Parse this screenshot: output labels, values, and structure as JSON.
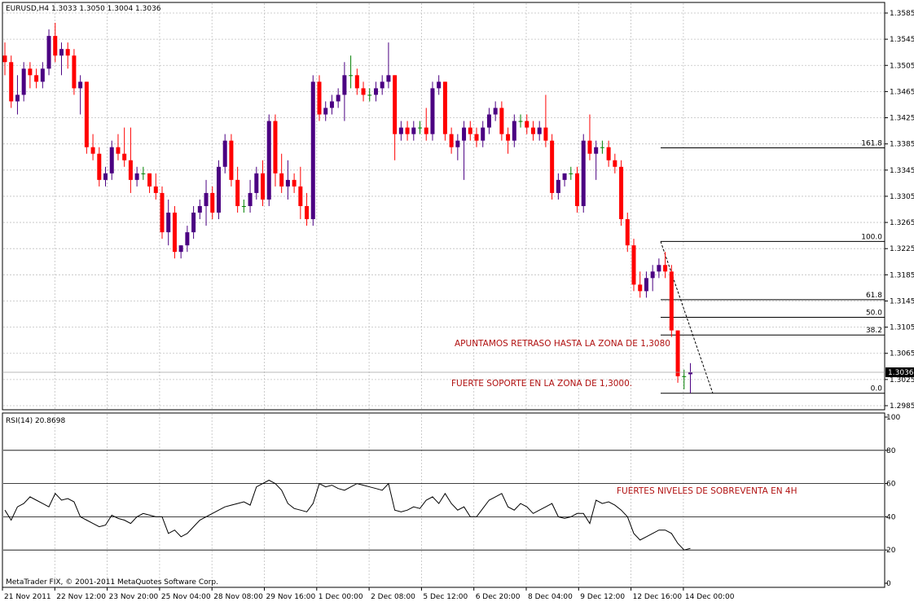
{
  "header": {
    "symbol_info": "EURUSD,H4  1.3033 1.3050 1.3004 1.3036",
    "indicator_info": "RSI(14) 20.8698",
    "footer": "MetaTrader FIX, © 2001-2011 MetaQuotes Software Corp."
  },
  "colors": {
    "bull": "#4b0082",
    "bear": "#ff0000",
    "doji": "#008000",
    "rsi_line": "#000000",
    "annotation": "#b01010",
    "grid": "#c0c0c0"
  },
  "chart_data": [
    {
      "type": "candlestick",
      "symbol": "EURUSD",
      "timeframe": "H4",
      "last_price": "1.3036",
      "ylim": [
        1.2985,
        1.3585
      ],
      "y_ticks": [
        "1.3585",
        "1.3545",
        "1.3505",
        "1.3465",
        "1.3425",
        "1.3385",
        "1.3345",
        "1.3305",
        "1.3265",
        "1.3225",
        "1.3185",
        "1.3145",
        "1.3105",
        "1.3065",
        "1.3025",
        "1.2985"
      ],
      "x_ticks": [
        "21 Nov 2011",
        "22 Nov 12:00",
        "23 Nov 20:00",
        "25 Nov 04:00",
        "28 Nov 08:00",
        "29 Nov 16:00",
        "1 Dec 00:00",
        "2 Dec 08:00",
        "5 Dec 12:00",
        "6 Dec 20:00",
        "8 Dec 04:00",
        "9 Dec 12:00",
        "12 Dec 16:00",
        "14 Dec 00:00"
      ],
      "candles": [
        [
          1.352,
          1.354,
          1.349,
          1.351
        ],
        [
          1.351,
          1.352,
          1.344,
          1.345
        ],
        [
          1.345,
          1.349,
          1.343,
          1.346
        ],
        [
          1.346,
          1.351,
          1.345,
          1.35
        ],
        [
          1.35,
          1.351,
          1.347,
          1.349
        ],
        [
          1.349,
          1.35,
          1.347,
          1.348
        ],
        [
          1.348,
          1.351,
          1.347,
          1.35
        ],
        [
          1.35,
          1.356,
          1.349,
          1.355
        ],
        [
          1.355,
          1.357,
          1.351,
          1.352
        ],
        [
          1.352,
          1.354,
          1.349,
          1.353
        ],
        [
          1.353,
          1.354,
          1.35,
          1.352
        ],
        [
          1.352,
          1.353,
          1.346,
          1.347
        ],
        [
          1.347,
          1.349,
          1.343,
          1.348
        ],
        [
          1.348,
          1.348,
          1.337,
          1.338
        ],
        [
          1.338,
          1.34,
          1.336,
          1.337
        ],
        [
          1.337,
          1.338,
          1.332,
          1.333
        ],
        [
          1.333,
          1.335,
          1.332,
          1.334
        ],
        [
          1.334,
          1.339,
          1.333,
          1.338
        ],
        [
          1.338,
          1.34,
          1.336,
          1.337
        ],
        [
          1.337,
          1.341,
          1.335,
          1.336
        ],
        [
          1.336,
          1.341,
          1.331,
          1.333
        ],
        [
          1.333,
          1.335,
          1.332,
          1.334
        ],
        [
          1.334,
          1.335,
          1.333,
          1.334
        ],
        [
          1.334,
          1.334,
          1.331,
          1.332
        ],
        [
          1.332,
          1.334,
          1.33,
          1.331
        ],
        [
          1.331,
          1.332,
          1.324,
          1.325
        ],
        [
          1.325,
          1.33,
          1.323,
          1.328
        ],
        [
          1.328,
          1.329,
          1.321,
          1.322
        ],
        [
          1.322,
          1.323,
          1.321,
          1.323
        ],
        [
          1.323,
          1.326,
          1.322,
          1.325
        ],
        [
          1.325,
          1.329,
          1.324,
          1.328
        ],
        [
          1.328,
          1.33,
          1.327,
          1.329
        ],
        [
          1.329,
          1.333,
          1.326,
          1.331
        ],
        [
          1.331,
          1.332,
          1.327,
          1.328
        ],
        [
          1.328,
          1.336,
          1.327,
          1.335
        ],
        [
          1.335,
          1.34,
          1.334,
          1.339
        ],
        [
          1.339,
          1.34,
          1.332,
          1.333
        ],
        [
          1.333,
          1.335,
          1.328,
          1.329
        ],
        [
          1.329,
          1.33,
          1.328,
          1.329
        ],
        [
          1.329,
          1.333,
          1.328,
          1.331
        ],
        [
          1.331,
          1.335,
          1.33,
          1.334
        ],
        [
          1.334,
          1.336,
          1.329,
          1.33
        ],
        [
          1.33,
          1.343,
          1.329,
          1.342
        ],
        [
          1.342,
          1.343,
          1.332,
          1.334
        ],
        [
          1.334,
          1.337,
          1.331,
          1.332
        ],
        [
          1.332,
          1.336,
          1.33,
          1.333
        ],
        [
          1.333,
          1.334,
          1.331,
          1.332
        ],
        [
          1.332,
          1.335,
          1.327,
          1.329
        ],
        [
          1.329,
          1.331,
          1.326,
          1.327
        ],
        [
          1.327,
          1.349,
          1.326,
          1.348
        ],
        [
          1.348,
          1.349,
          1.342,
          1.343
        ],
        [
          1.343,
          1.345,
          1.342,
          1.344
        ],
        [
          1.344,
          1.346,
          1.343,
          1.345
        ],
        [
          1.345,
          1.347,
          1.344,
          1.346
        ],
        [
          1.346,
          1.351,
          1.342,
          1.349
        ],
        [
          1.349,
          1.352,
          1.347,
          1.349
        ],
        [
          1.349,
          1.35,
          1.346,
          1.347
        ],
        [
          1.347,
          1.348,
          1.345,
          1.346
        ],
        [
          1.346,
          1.347,
          1.345,
          1.346
        ],
        [
          1.346,
          1.348,
          1.345,
          1.347
        ],
        [
          1.347,
          1.349,
          1.346,
          1.348
        ],
        [
          1.348,
          1.354,
          1.347,
          1.349
        ],
        [
          1.349,
          1.349,
          1.336,
          1.34
        ],
        [
          1.34,
          1.342,
          1.339,
          1.341
        ],
        [
          1.341,
          1.342,
          1.339,
          1.34
        ],
        [
          1.34,
          1.342,
          1.339,
          1.341
        ],
        [
          1.341,
          1.342,
          1.34,
          1.341
        ],
        [
          1.341,
          1.344,
          1.339,
          1.34
        ],
        [
          1.34,
          1.348,
          1.339,
          1.347
        ],
        [
          1.347,
          1.349,
          1.346,
          1.348
        ],
        [
          1.348,
          1.348,
          1.339,
          1.34
        ],
        [
          1.34,
          1.341,
          1.337,
          1.338
        ],
        [
          1.338,
          1.34,
          1.336,
          1.339
        ],
        [
          1.339,
          1.342,
          1.333,
          1.341
        ],
        [
          1.341,
          1.342,
          1.339,
          1.34
        ],
        [
          1.34,
          1.341,
          1.338,
          1.339
        ],
        [
          1.339,
          1.342,
          1.338,
          1.341
        ],
        [
          1.341,
          1.344,
          1.34,
          1.343
        ],
        [
          1.343,
          1.345,
          1.342,
          1.344
        ],
        [
          1.344,
          1.345,
          1.339,
          1.34
        ],
        [
          1.34,
          1.341,
          1.337,
          1.339
        ],
        [
          1.339,
          1.343,
          1.338,
          1.342
        ],
        [
          1.342,
          1.343,
          1.341,
          1.342
        ],
        [
          1.342,
          1.343,
          1.34,
          1.341
        ],
        [
          1.341,
          1.342,
          1.339,
          1.34
        ],
        [
          1.34,
          1.342,
          1.339,
          1.341
        ],
        [
          1.341,
          1.346,
          1.338,
          1.339
        ],
        [
          1.339,
          1.34,
          1.33,
          1.331
        ],
        [
          1.331,
          1.334,
          1.33,
          1.333
        ],
        [
          1.333,
          1.334,
          1.332,
          1.334
        ],
        [
          1.334,
          1.335,
          1.333,
          1.334
        ],
        [
          1.334,
          1.335,
          1.328,
          1.329
        ],
        [
          1.329,
          1.34,
          1.328,
          1.339
        ],
        [
          1.339,
          1.343,
          1.336,
          1.337
        ],
        [
          1.337,
          1.339,
          1.333,
          1.338
        ],
        [
          1.338,
          1.339,
          1.337,
          1.338
        ],
        [
          1.338,
          1.339,
          1.335,
          1.336
        ],
        [
          1.336,
          1.337,
          1.334,
          1.335
        ],
        [
          1.335,
          1.336,
          1.326,
          1.327
        ],
        [
          1.327,
          1.328,
          1.322,
          1.323
        ],
        [
          1.323,
          1.324,
          1.316,
          1.317
        ],
        [
          1.317,
          1.319,
          1.315,
          1.316
        ],
        [
          1.316,
          1.319,
          1.315,
          1.318
        ],
        [
          1.318,
          1.32,
          1.316,
          1.319
        ],
        [
          1.319,
          1.321,
          1.318,
          1.32
        ],
        [
          1.32,
          1.322,
          1.318,
          1.319
        ],
        [
          1.319,
          1.32,
          1.309,
          1.31
        ],
        [
          1.31,
          1.31,
          1.302,
          1.303
        ],
        [
          1.303,
          1.304,
          1.301,
          1.303
        ],
        [
          1.3033,
          1.305,
          1.3004,
          1.3036
        ]
      ],
      "fibonacci": {
        "high": 1.3236,
        "low": 1.3004,
        "levels": [
          {
            "label": "161.8",
            "value": 1.3379
          },
          {
            "label": "100.0",
            "value": 1.3236
          },
          {
            "label": "61.8",
            "value": 1.3147
          },
          {
            "label": "50.0",
            "value": 1.312
          },
          {
            "label": "38.2",
            "value": 1.3093
          },
          {
            "label": "0.0",
            "value": 1.3004
          }
        ]
      },
      "annotations": [
        "APUNTAMOS RETRASO HASTA LA ZONA DE 1,3080",
        "FUERTE SOPORTE EN LA ZONA DE 1,3000."
      ]
    },
    {
      "type": "line",
      "name": "RSI(14)",
      "current_value": 20.8698,
      "ylim": [
        0,
        100
      ],
      "y_ticks": [
        "100",
        "80",
        "60",
        "40",
        "20",
        "0"
      ],
      "levels": [
        80,
        60,
        40,
        20
      ],
      "values": [
        44,
        38,
        46,
        48,
        52,
        50,
        48,
        46,
        54,
        50,
        51,
        49,
        40,
        38,
        36,
        34,
        35,
        41,
        39,
        38,
        36,
        40,
        42,
        41,
        40,
        40,
        30,
        32,
        28,
        30,
        34,
        38,
        40,
        42,
        44,
        46,
        47,
        48,
        49,
        47,
        58,
        60,
        62,
        60,
        56,
        48,
        45,
        44,
        43,
        48,
        60,
        58,
        59,
        57,
        56,
        58,
        60,
        59,
        58,
        57,
        56,
        60,
        44,
        43,
        44,
        46,
        45,
        50,
        52,
        48,
        54,
        48,
        44,
        46,
        40,
        40,
        45,
        50,
        52,
        54,
        46,
        44,
        48,
        46,
        42,
        44,
        46,
        48,
        40,
        39,
        40,
        42,
        42,
        36,
        50,
        48,
        49,
        47,
        44,
        40,
        30,
        26,
        28,
        30,
        32,
        32,
        30,
        24,
        20,
        21
      ],
      "annotation": "FUERTES NIVELES DE SOBREVENTA EN 4H"
    }
  ]
}
